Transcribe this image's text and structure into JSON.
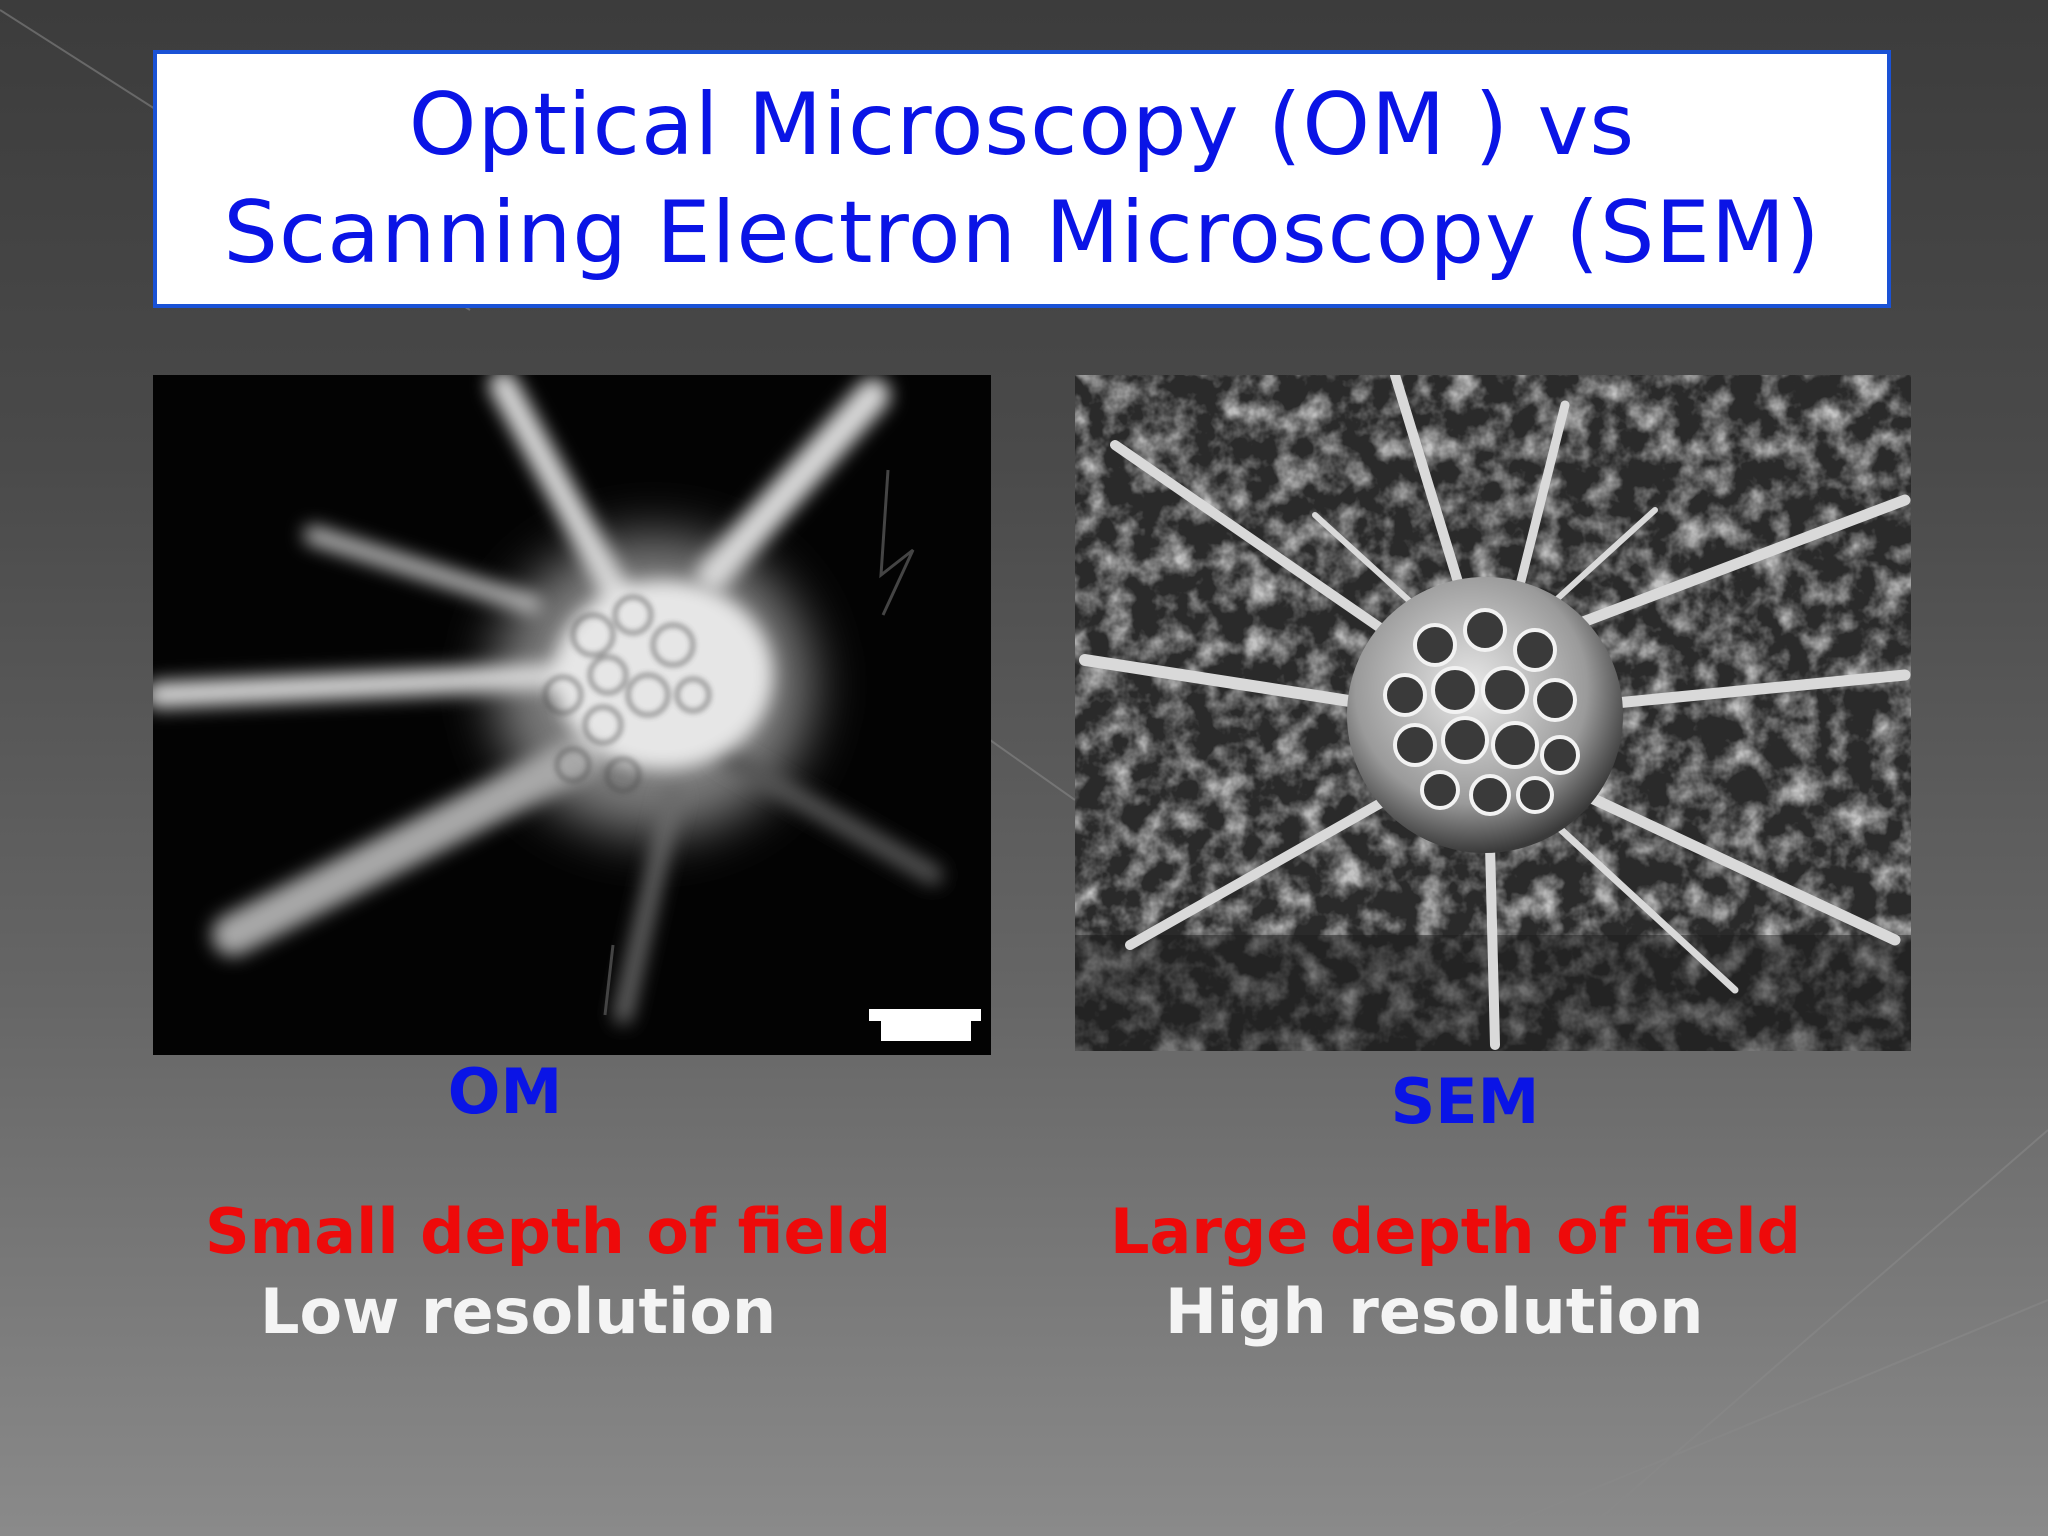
{
  "slide": {
    "title_line1": "Optical Microscopy (OM ) vs",
    "title_line2": "Scanning Electron Microscopy (SEM)"
  },
  "om": {
    "caption": "OM",
    "property1": "Small depth of field",
    "property2": "Low resolution"
  },
  "sem": {
    "caption": "SEM",
    "property1": "Large depth of field",
    "property2": "High resolution"
  },
  "colors": {
    "title_text": "#0a14e6",
    "title_border": "#1a52d6",
    "caption": "#0a14e6",
    "property_red": "#ee0a0a",
    "property_white": "#f4f4f4"
  }
}
